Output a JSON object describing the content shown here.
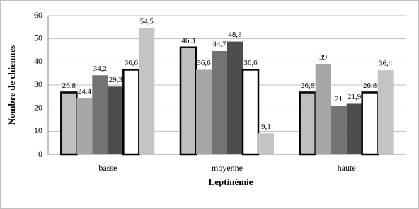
{
  "chart_data": {
    "type": "bar",
    "categories": [
      "basse",
      "moyenne",
      "haute"
    ],
    "xlabel": "Leptinémie",
    "ylabel": "Nombre de chiennes",
    "ylim": [
      0,
      60
    ],
    "yticks": [
      0,
      10,
      20,
      30,
      40,
      50,
      60
    ],
    "grid": true,
    "series": [
      {
        "color": "#bfbfbf",
        "edgecolor": "#000000",
        "values": [
          26.8,
          46.3,
          26.8
        ],
        "value_labels": [
          "26,8",
          "46,3",
          "26,8"
        ]
      },
      {
        "color": "#a6a6a6",
        "values": [
          24.4,
          36.6,
          39
        ],
        "value_labels": [
          "24,4",
          "36,6",
          "39"
        ]
      },
      {
        "color": "#737373",
        "values": [
          34.2,
          44.7,
          21
        ],
        "value_labels": [
          "34,2",
          "44,7",
          "21"
        ]
      },
      {
        "color": "#4d4d4d",
        "values": [
          29.3,
          48.8,
          21.9
        ],
        "value_labels": [
          "29,3",
          "48,8",
          "21,9"
        ]
      },
      {
        "color": "#ffffff",
        "edgecolor": "#000000",
        "values": [
          36.6,
          36.6,
          26.8
        ],
        "value_labels": [
          "36,6",
          "36,6",
          "26,8"
        ]
      },
      {
        "color": "#c4c4c4",
        "values": [
          54.5,
          9.1,
          36.4
        ],
        "value_labels": [
          "54,5",
          "9,1",
          "36,4"
        ]
      }
    ]
  }
}
